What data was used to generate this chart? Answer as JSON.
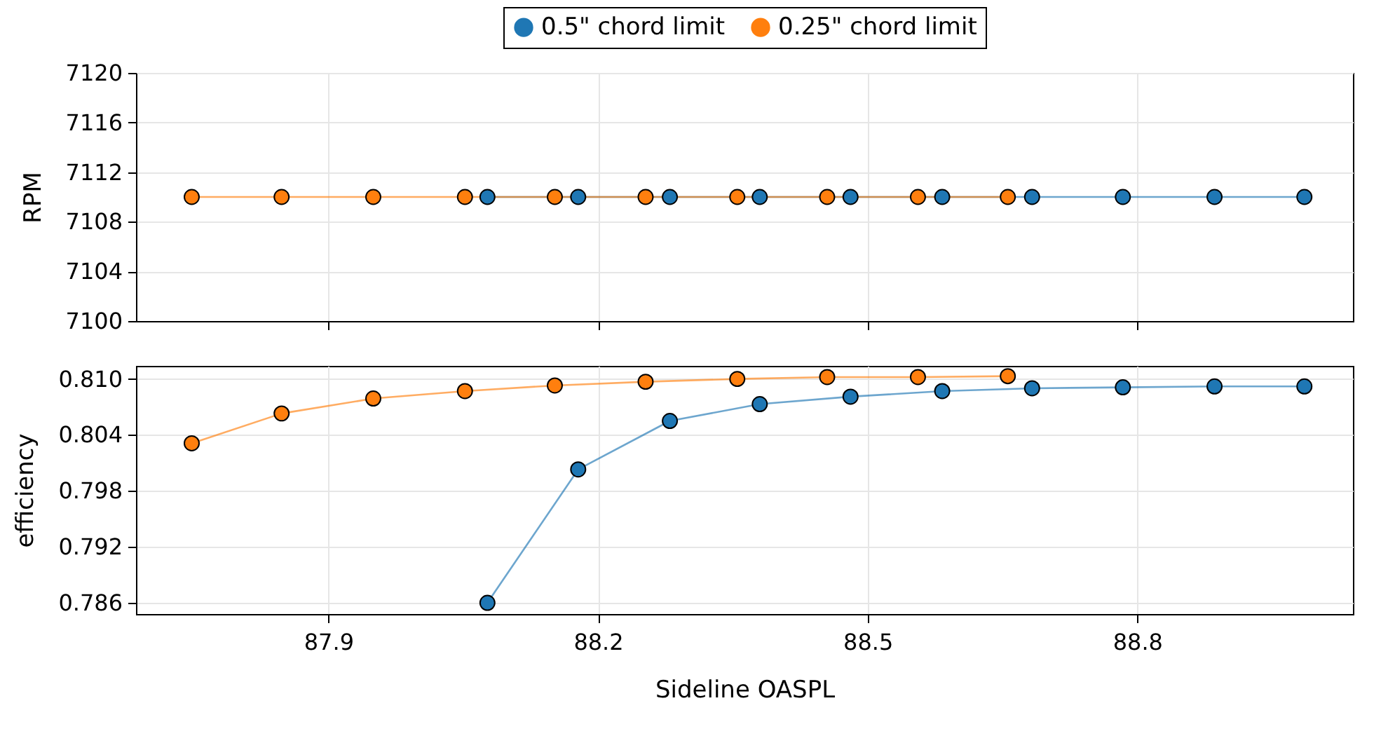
{
  "chart_data": [
    {
      "type": "line",
      "ylabel": "RPM",
      "xlim": [
        87.686,
        89.04
      ],
      "xticks": [
        87.9,
        88.2,
        88.5,
        88.8
      ],
      "ylim": [
        7100,
        7120
      ],
      "yticks": [
        7100,
        7104,
        7108,
        7112,
        7116,
        7120
      ],
      "tick_labels": "y",
      "grid": true,
      "legend": "top",
      "marker": "circle",
      "series": [
        {
          "name": "0.5\" chord limit",
          "color": "#1f77b4",
          "x": [
            88.077,
            88.178,
            88.28,
            88.38,
            88.481,
            88.583,
            88.683,
            88.784,
            88.886,
            88.986
          ],
          "values": [
            7110,
            7110,
            7110,
            7110,
            7110,
            7110,
            7110,
            7110,
            7110,
            7110
          ]
        },
        {
          "name": "0.25\" chord limit",
          "color": "#ff7f0e",
          "x": [
            87.748,
            87.848,
            87.95,
            88.052,
            88.152,
            88.253,
            88.355,
            88.455,
            88.556,
            88.656
          ],
          "values": [
            7110,
            7110,
            7110,
            7110,
            7110,
            7110,
            7110,
            7110,
            7110,
            7110
          ]
        }
      ]
    },
    {
      "type": "line",
      "xlabel": "Sideline OASPL",
      "ylabel": "efficiency",
      "xlim": [
        87.686,
        89.04
      ],
      "xticks": [
        87.9,
        88.2,
        88.5,
        88.8
      ],
      "ylim": [
        0.7848,
        0.8114
      ],
      "yticks": [
        0.786,
        0.792,
        0.798,
        0.804,
        {
          "value": 0.81,
          "label": "0.810"
        }
      ],
      "grid": true,
      "marker": "circle",
      "series": [
        {
          "color": "#1f77b4",
          "x": [
            88.077,
            88.178,
            88.28,
            88.38,
            88.481,
            88.583,
            88.683,
            88.784,
            88.886,
            88.986
          ],
          "values": [
            0.786,
            0.8003,
            0.8055,
            0.8073,
            0.8081,
            0.8087,
            0.809,
            0.8091,
            0.8092,
            0.8092
          ]
        },
        {
          "color": "#ff7f0e",
          "x": [
            87.748,
            87.848,
            87.95,
            88.052,
            88.152,
            88.253,
            88.355,
            88.455,
            88.556,
            88.656
          ],
          "values": [
            0.8031,
            0.8063,
            0.8079,
            0.8087,
            0.8093,
            0.8097,
            0.81,
            0.8102,
            0.8102,
            0.8103
          ]
        }
      ]
    }
  ]
}
